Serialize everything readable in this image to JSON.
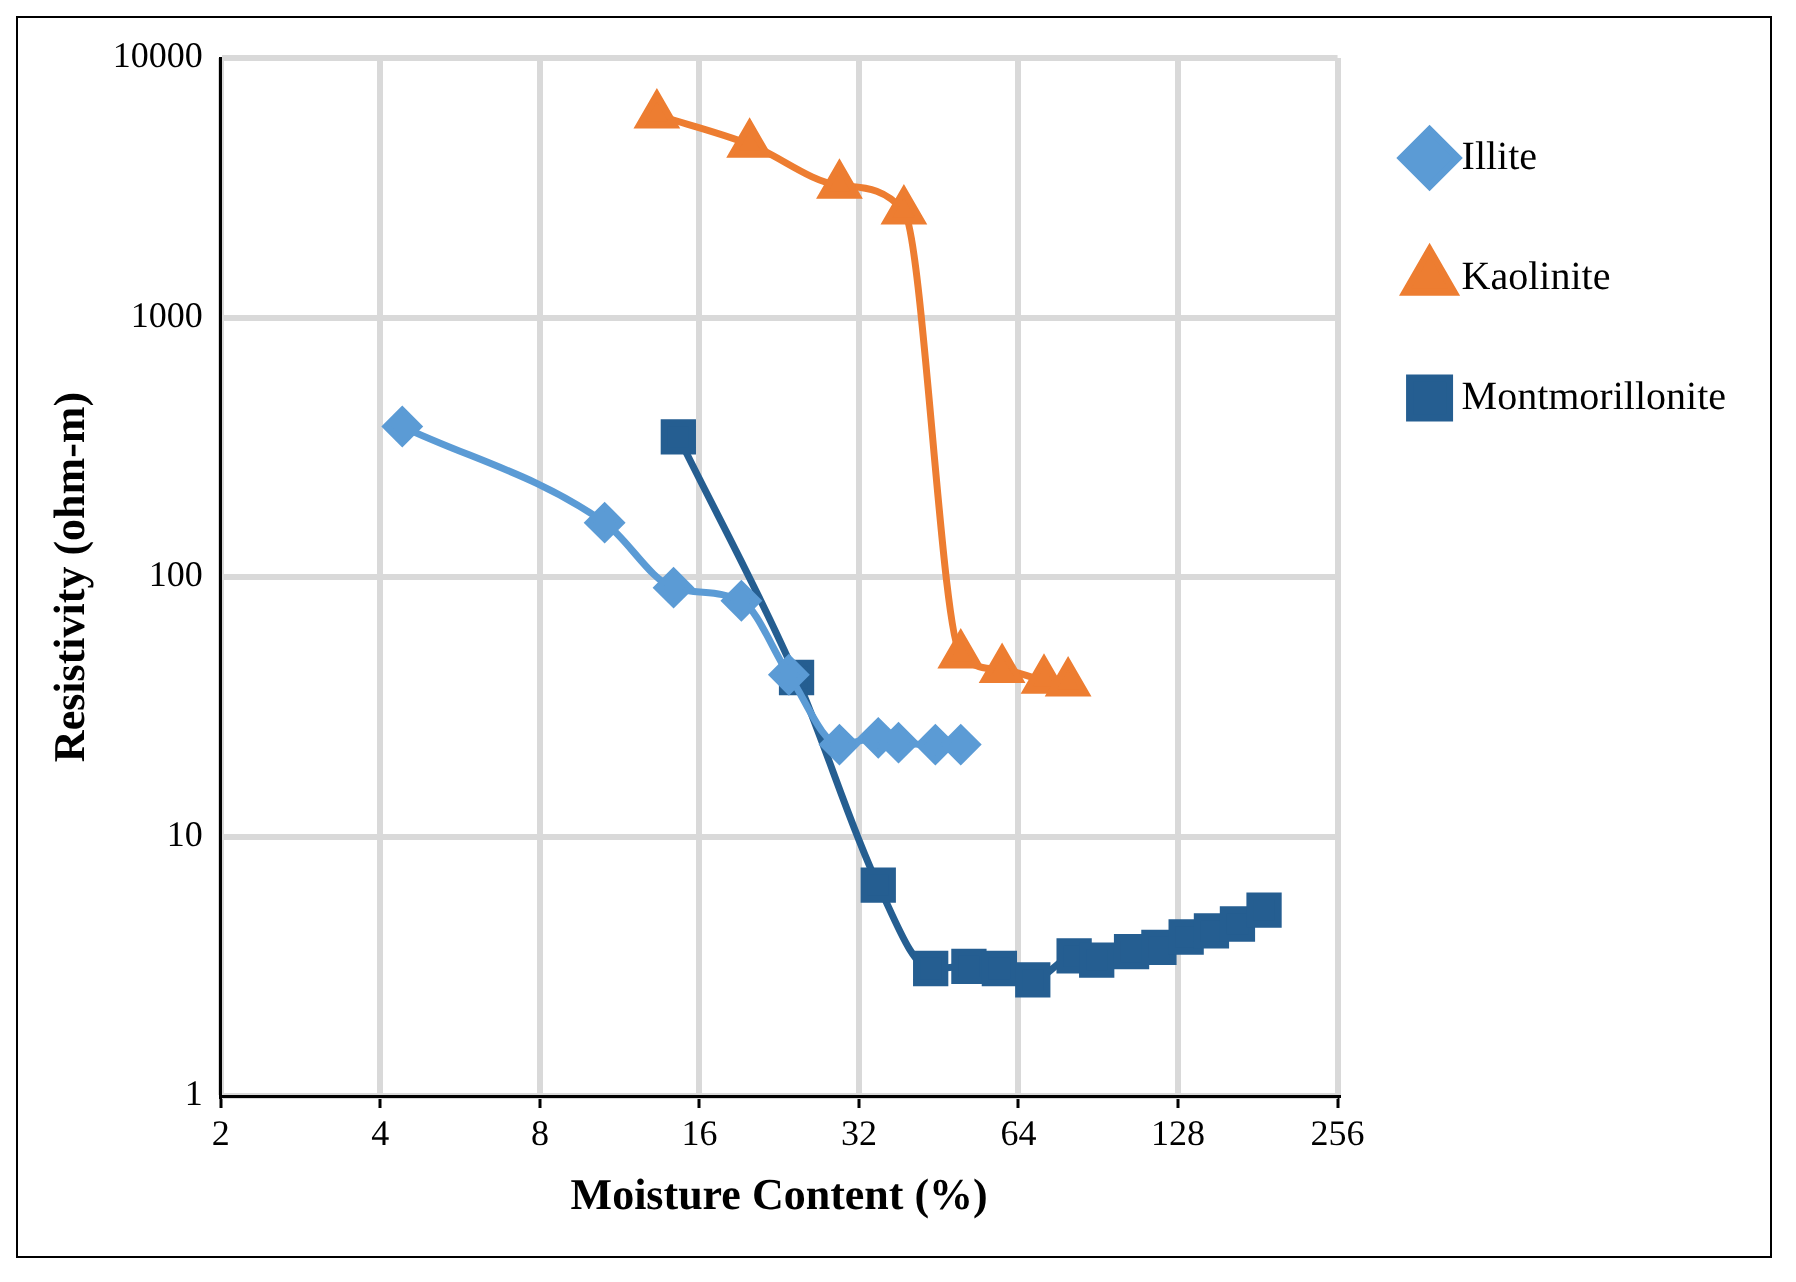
{
  "chart_data": {
    "type": "line",
    "xlabel": "Moisture Content (%)",
    "ylabel": "Resistivity (ohm-m)",
    "log": "xy",
    "grid": true,
    "legend": "right",
    "xlim": [
      2,
      256
    ],
    "xticks": [
      2,
      4,
      8,
      16,
      32,
      64,
      128,
      256
    ],
    "ylim": [
      1,
      10000
    ],
    "yticks": [
      1,
      10,
      100,
      1000,
      10000
    ],
    "series": [
      {
        "name": "Illite",
        "color": "#5b9bd5",
        "marker": "diamond",
        "x": [
          4.4,
          10.6,
          14.3,
          19.2,
          23.6,
          29.4,
          34.8,
          38,
          44.6,
          49.8
        ],
        "values": [
          380,
          162,
          91,
          81,
          42,
          22.6,
          24,
          23,
          22.6,
          22.6
        ]
      },
      {
        "name": "Kaolinite",
        "color": "#ed7d31",
        "marker": "triangle",
        "x": [
          13.3,
          19.9,
          29.4,
          38.9,
          49.8,
          59.6,
          71.5,
          79.4
        ],
        "values": [
          6030,
          4650,
          3230,
          2570,
          50,
          44,
          40,
          39
        ]
      },
      {
        "name": "Montmorillonite",
        "color": "#255e91",
        "marker": "square",
        "x": [
          14.6,
          24.4,
          34.8,
          43.7,
          51.6,
          58.9,
          68.1,
          81.5,
          89.9,
          104.6,
          117.8,
          132.6,
          148,
          165.7,
          186
        ],
        "values": [
          347,
          41,
          6.5,
          3.1,
          3.16,
          3.1,
          2.8,
          3.47,
          3.34,
          3.6,
          3.74,
          4.1,
          4.33,
          4.6,
          5.2
        ]
      }
    ]
  }
}
